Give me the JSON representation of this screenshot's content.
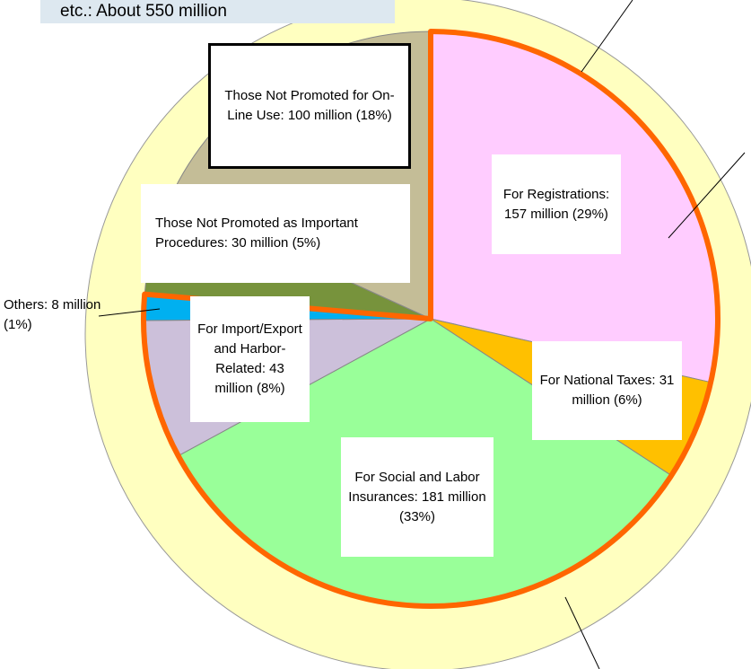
{
  "chart_data": {
    "type": "pie",
    "annotation": "etc.: About 550 million",
    "labels": [
      "For Registrations: 157 million (29%)",
      "For National Taxes: 31 million (6%)",
      "For Social and Labor Insurances: 181 million (33%)",
      "For Import/Export and Harbor-Related: 43 million (8%)",
      "Others: 8 million (1%)",
      "Those Not Promoted as Important Procedures: 30 million (5%)",
      "Those Not Promoted for On-Line Use: 100 million (18%)"
    ],
    "values": [
      157,
      31,
      181,
      43,
      8,
      30,
      100
    ],
    "colors": [
      "#ffccff",
      "#ffc000",
      "#99ff99",
      "#ccc0da",
      "#00b0f0",
      "#77933c",
      "#c4bd97"
    ]
  }
}
